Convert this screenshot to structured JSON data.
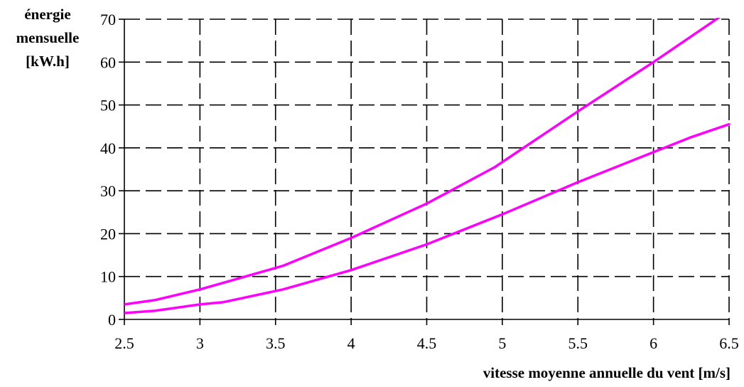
{
  "chart_data": {
    "type": "line",
    "title": "",
    "ylabel_lines": [
      "énergie",
      "mensuelle",
      "[kW.h]"
    ],
    "xlabel": "vitesse moyenne annuelle du vent [m/s]",
    "xlim": [
      2.5,
      6.5
    ],
    "ylim": [
      0,
      70
    ],
    "xticks": [
      "2.5",
      "3",
      "3.5",
      "4",
      "4.5",
      "5",
      "5.5",
      "6",
      "6.5"
    ],
    "yticks": [
      "0",
      "10",
      "20",
      "30",
      "40",
      "50",
      "60",
      "70"
    ],
    "xtick_values": [
      2.5,
      3,
      3.5,
      4,
      4.5,
      5,
      5.5,
      6,
      6.5
    ],
    "ytick_values": [
      0,
      10,
      20,
      30,
      40,
      50,
      60,
      70
    ],
    "grid": true,
    "line_color": "#ff00ff",
    "series": [
      {
        "x": [
          2.5,
          2.7,
          3.0,
          3.15,
          3.55,
          4.0,
          4.5,
          4.95,
          5.5,
          6.0,
          6.5
        ],
        "values": [
          3.5,
          4.5,
          7.0,
          8.5,
          12.5,
          19.0,
          27.0,
          35.5,
          48.5,
          60.0,
          72.0
        ]
      },
      {
        "x": [
          2.5,
          2.7,
          3.0,
          3.15,
          3.55,
          4.0,
          4.5,
          5.0,
          5.5,
          6.0,
          6.25,
          6.5
        ],
        "values": [
          1.5,
          2.0,
          3.5,
          4.0,
          7.0,
          11.5,
          17.5,
          24.5,
          32.0,
          39.0,
          42.5,
          45.5
        ]
      }
    ]
  }
}
